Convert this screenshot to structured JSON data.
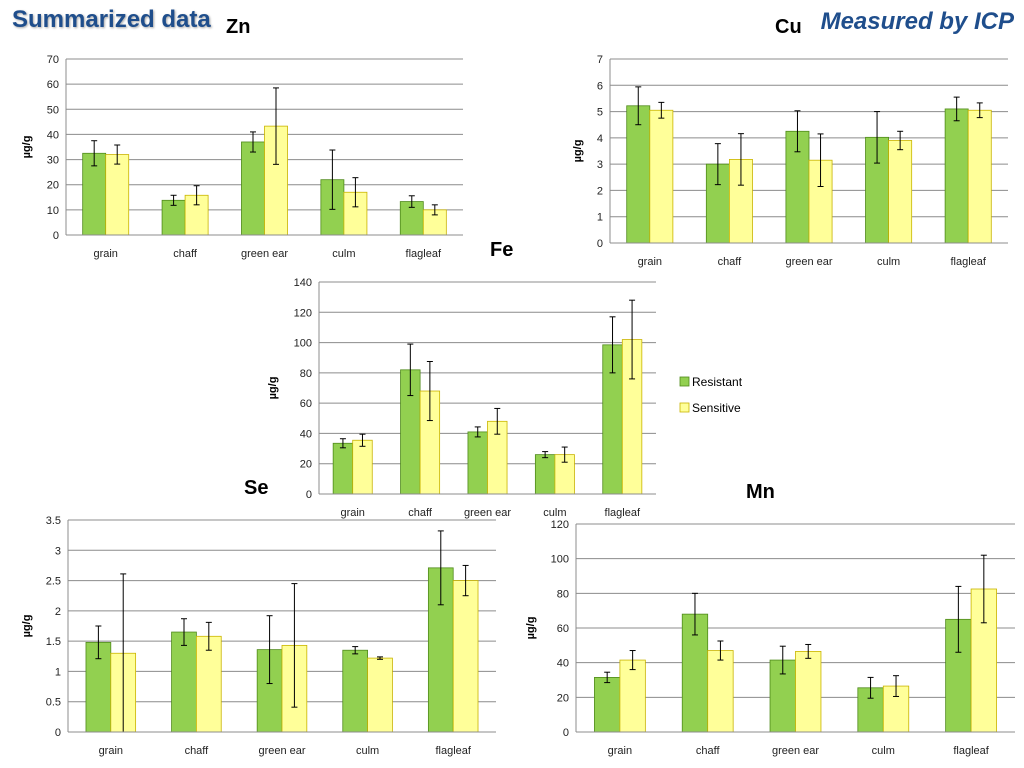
{
  "slide": {
    "title": "Summarized data",
    "subtitle": "Measured by ICP"
  },
  "colors": {
    "resistant": "#92d050",
    "resistant_border": "#4f8a1a",
    "sensitive": "#ffff99",
    "sensitive_border": "#c9b400",
    "grid": "#8c8c8c"
  },
  "legend": {
    "items": [
      {
        "label": "Resistant"
      },
      {
        "label": "Sensitive"
      }
    ]
  },
  "chart_data": [
    {
      "id": "zn",
      "type": "bar",
      "title": "Zn",
      "ylabel": "µg/g",
      "categories": [
        "grain",
        "chaff",
        "green ear",
        "culm",
        "flagleaf"
      ],
      "yticks": [
        "0",
        "10",
        "20",
        "30",
        "40",
        "50",
        "60",
        "70"
      ],
      "ylim": [
        0,
        70
      ],
      "series": [
        {
          "name": "Resistant",
          "values": [
            32.5,
            13.8,
            37,
            22,
            13.3
          ],
          "errors": [
            5,
            2,
            4,
            11.8,
            2.3
          ]
        },
        {
          "name": "Sensitive",
          "values": [
            32,
            15.8,
            43.3,
            17,
            10
          ],
          "errors": [
            3.8,
            3.8,
            15.2,
            5.8,
            2
          ]
        }
      ]
    },
    {
      "id": "cu",
      "type": "bar",
      "title": "Cu",
      "ylabel": "µg/g",
      "categories": [
        "grain",
        "chaff",
        "green ear",
        "culm",
        "flagleaf"
      ],
      "yticks": [
        "0",
        "1",
        "2",
        "3",
        "4",
        "5",
        "6",
        "7"
      ],
      "ylim": [
        0,
        7
      ],
      "series": [
        {
          "name": "Resistant",
          "values": [
            5.22,
            3,
            4.25,
            4.02,
            5.1
          ],
          "errors": [
            0.72,
            0.78,
            0.78,
            0.98,
            0.45
          ]
        },
        {
          "name": "Sensitive",
          "values": [
            5.05,
            3.18,
            3.15,
            3.9,
            5.05
          ],
          "errors": [
            0.3,
            0.98,
            1,
            0.35,
            0.28
          ]
        }
      ]
    },
    {
      "id": "fe",
      "type": "bar",
      "title": "Fe",
      "ylabel": "µg/g",
      "categories": [
        "grain",
        "chaff",
        "green ear",
        "culm",
        "flagleaf"
      ],
      "yticks": [
        "0",
        "20",
        "40",
        "60",
        "80",
        "100",
        "120",
        "140"
      ],
      "ylim": [
        0,
        140
      ],
      "legend": "right",
      "series": [
        {
          "name": "Resistant",
          "values": [
            33.5,
            82,
            41,
            26,
            98.5
          ],
          "errors": [
            3,
            17,
            3.3,
            2,
            18.5
          ]
        },
        {
          "name": "Sensitive",
          "values": [
            35.5,
            68,
            48,
            26,
            102
          ],
          "errors": [
            4,
            19.5,
            8.5,
            5,
            26
          ]
        }
      ]
    },
    {
      "id": "se",
      "type": "bar",
      "title": "Se",
      "ylabel": "µg/g",
      "categories": [
        "grain",
        "chaff",
        "green ear",
        "culm",
        "flagleaf"
      ],
      "yticks": [
        "0",
        "0.5",
        "1",
        "1.5",
        "2",
        "2.5",
        "3",
        "3.5"
      ],
      "ylim": [
        0,
        3.5
      ],
      "series": [
        {
          "name": "Resistant",
          "values": [
            1.48,
            1.65,
            1.36,
            1.35,
            2.71
          ],
          "errors": [
            0.27,
            0.22,
            0.56,
            0.06,
            0.61
          ]
        },
        {
          "name": "Sensitive",
          "values": [
            1.3,
            1.58,
            1.43,
            1.22,
            2.5
          ],
          "errors": [
            1.31,
            0.23,
            1.02,
            0.02,
            0.25
          ]
        }
      ]
    },
    {
      "id": "mn",
      "type": "bar",
      "title": "Mn",
      "ylabel": "µg/g",
      "categories": [
        "grain",
        "chaff",
        "green ear",
        "culm",
        "flagleaf"
      ],
      "yticks": [
        "0",
        "20",
        "40",
        "60",
        "80",
        "100",
        "120"
      ],
      "ylim": [
        0,
        120
      ],
      "series": [
        {
          "name": "Resistant",
          "values": [
            31.5,
            68,
            41.5,
            25.5,
            65
          ],
          "errors": [
            3,
            12,
            8,
            6,
            19
          ]
        },
        {
          "name": "Sensitive",
          "values": [
            41.5,
            47,
            46.5,
            26.5,
            82.5
          ],
          "errors": [
            5.5,
            5.5,
            4,
            6,
            19.5
          ]
        }
      ]
    }
  ]
}
